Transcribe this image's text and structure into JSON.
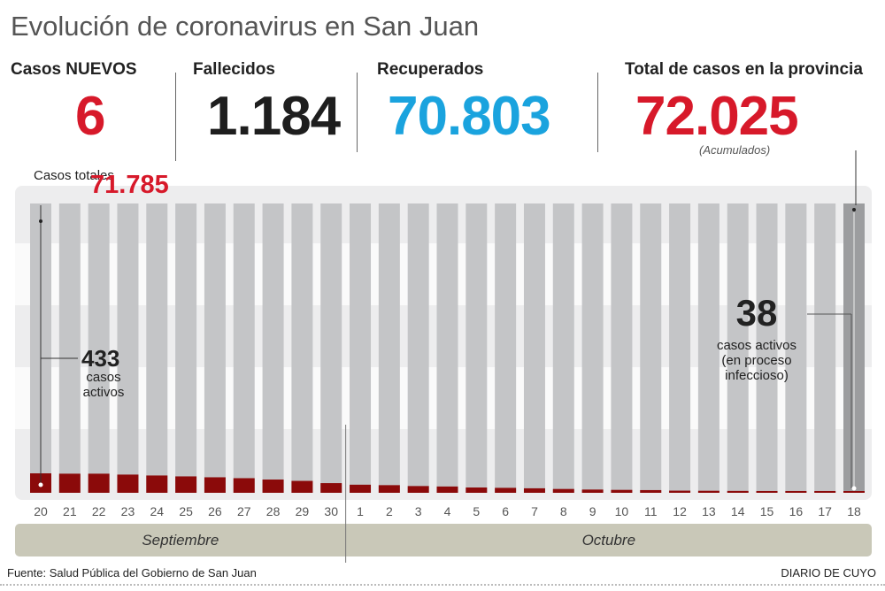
{
  "title": "Evolución de coronavirus en San Juan",
  "stats": {
    "nuevos": {
      "label": "Casos NUEVOS",
      "value": "6",
      "color": "#d7192a"
    },
    "fallecidos": {
      "label": "Fallecidos",
      "value": "1.184",
      "color": "#1e1e1e"
    },
    "recuperados": {
      "label": "Recuperados",
      "value": "70.803",
      "color": "#1aa3de"
    },
    "total": {
      "label": "Total de casos en la provincia",
      "value": "72.025",
      "note": "(Acumulados)",
      "color": "#d7192a"
    }
  },
  "chart_data": {
    "type": "bar",
    "stacked": true,
    "categories": [
      "20",
      "21",
      "22",
      "23",
      "24",
      "25",
      "26",
      "27",
      "28",
      "29",
      "30",
      "1",
      "2",
      "3",
      "4",
      "5",
      "6",
      "7",
      "8",
      "9",
      "10",
      "11",
      "12",
      "13",
      "14",
      "15",
      "16",
      "17",
      "18"
    ],
    "series": [
      {
        "name": "casos activos",
        "color": "#8b0a0a",
        "values": [
          433,
          425,
          425,
          405,
          385,
          365,
          345,
          325,
          295,
          265,
          215,
          180,
          170,
          150,
          140,
          118,
          110,
          100,
          85,
          72,
          65,
          60,
          48,
          45,
          42,
          40,
          40,
          40,
          38
        ]
      },
      {
        "name": "Casos totales",
        "color": "#c4c5c7",
        "highlight_color": "#9c9d9f"
      }
    ],
    "months": [
      {
        "label": "Septiembre",
        "from": "20",
        "to": "30"
      },
      {
        "label": "Octubre",
        "from": "1",
        "to": "18"
      }
    ],
    "annotations": {
      "casos_totales_label": "Casos totales",
      "casos_totales_value": "71.785",
      "start_active_value": "433",
      "start_active_label": "casos activos",
      "end_active_value": "38",
      "end_active_label1": "casos activos",
      "end_active_label2": "(en proceso",
      "end_active_label3": "infeccioso)"
    }
  },
  "footer": {
    "source": "Fuente: Salud Pública del Gobierno de San Juan",
    "brand": "DIARIO DE CUYO"
  }
}
